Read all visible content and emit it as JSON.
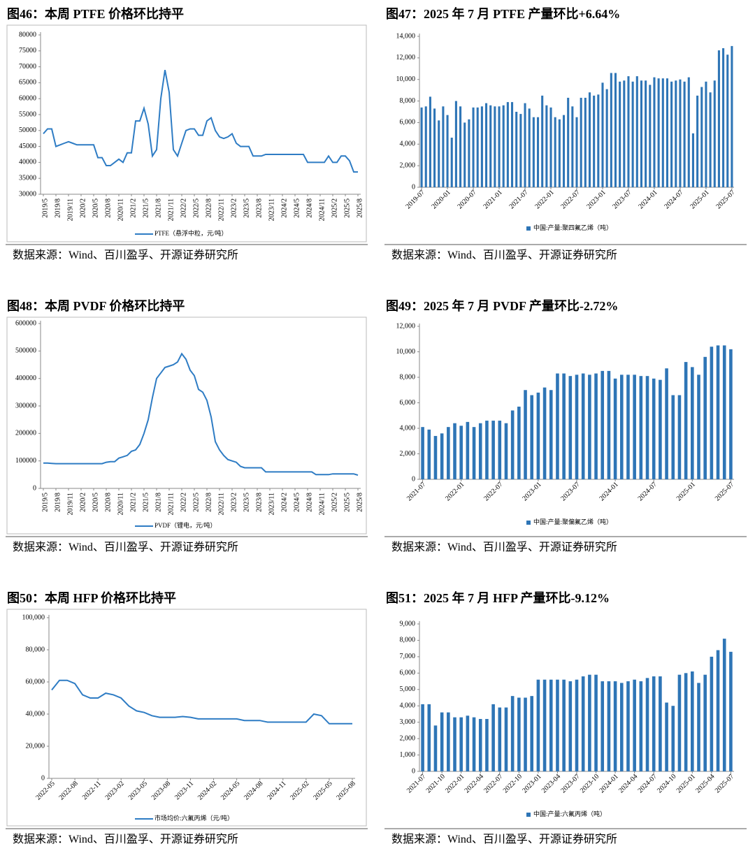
{
  "chart_data": [
    {
      "type": "line",
      "title": "图46：本周 PTFE 价格环比持平",
      "source": "数据来源：Wind、百川盈孚、开源证券研究所",
      "categories": [
        "2019/5",
        null,
        null,
        "2019/8",
        null,
        null,
        "2019/11",
        null,
        null,
        "2020/2",
        null,
        null,
        "2020/5",
        null,
        null,
        "2020/8",
        null,
        null,
        "2020/11",
        null,
        null,
        "2021/2",
        null,
        null,
        "2021/5",
        null,
        null,
        "2021/8",
        null,
        null,
        "2021/11",
        null,
        null,
        "2022/2",
        null,
        null,
        "2022/5",
        null,
        null,
        "2022/8",
        null,
        null,
        "2022/11",
        null,
        null,
        "2023/2",
        null,
        null,
        "2023/5",
        null,
        null,
        "2023/8",
        null,
        null,
        "2023/11",
        null,
        null,
        "2024/2",
        null,
        null,
        "2024/5",
        null,
        null,
        "2024/8",
        null,
        null,
        "2024/11",
        null,
        null,
        "2025/2",
        null,
        null,
        "2025/5",
        null,
        null,
        "2025/8"
      ],
      "series": [
        {
          "name": "PTFE（悬浮中粒，元/吨）",
          "color": "#2e7cc4",
          "values": [
            49000,
            50500,
            50500,
            45000,
            45500,
            46000,
            46500,
            46000,
            45500,
            45500,
            45500,
            45500,
            45500,
            41500,
            41500,
            39000,
            39000,
            40000,
            41000,
            40000,
            43000,
            43000,
            53000,
            53000,
            57000,
            52000,
            42000,
            44000,
            60000,
            69000,
            62000,
            44000,
            42000,
            46000,
            50000,
            50500,
            50500,
            48500,
            48500,
            53000,
            54000,
            50000,
            48000,
            47500,
            48000,
            49000,
            46000,
            45000,
            45000,
            45000,
            42000,
            42000,
            42000,
            42500,
            42500,
            42500,
            42500,
            42500,
            42500,
            42500,
            42500,
            42500,
            42500,
            40000,
            40000,
            40000,
            40000,
            40000,
            42000,
            40000,
            40000,
            42000,
            42000,
            40500,
            37000,
            37000
          ]
        }
      ],
      "ylim": [
        30000,
        80000
      ],
      "yticks": [
        30000,
        35000,
        40000,
        45000,
        50000,
        55000,
        60000,
        65000,
        70000,
        75000,
        80000
      ]
    },
    {
      "type": "bar",
      "title": "图47：2025 年 7 月 PTFE 产量环比+6.64%",
      "source": "数据来源：Wind、百川盈孚、开源证券研究所",
      "categories": [
        "2019-07",
        null,
        null,
        null,
        null,
        null,
        "2020-01",
        null,
        null,
        null,
        null,
        null,
        "2020-07",
        null,
        null,
        null,
        null,
        null,
        "2021-01",
        null,
        null,
        null,
        null,
        null,
        "2021-07",
        null,
        null,
        null,
        null,
        null,
        "2022-01",
        null,
        null,
        null,
        null,
        null,
        "2022-07",
        null,
        null,
        null,
        null,
        null,
        "2023-01",
        null,
        null,
        null,
        null,
        null,
        "2023-07",
        null,
        null,
        null,
        null,
        null,
        "2024-01",
        null,
        null,
        null,
        null,
        null,
        "2024-07",
        null,
        null,
        null,
        null,
        null,
        "2025-01",
        null,
        null,
        null,
        null,
        null,
        "2025-07"
      ],
      "series": [
        {
          "name": "中国:产量:聚四氟乙烯（吨）",
          "color": "#2e75b6",
          "values": [
            7400,
            7500,
            8400,
            7300,
            6200,
            7500,
            6700,
            4600,
            8000,
            7500,
            6000,
            6300,
            7400,
            7400,
            7500,
            7800,
            7600,
            7500,
            7500,
            7600,
            7900,
            7900,
            7000,
            6800,
            7800,
            7300,
            6500,
            6500,
            8500,
            7600,
            7400,
            6500,
            6300,
            6700,
            8300,
            7500,
            6500,
            8300,
            8300,
            8800,
            8500,
            8600,
            9700,
            9100,
            10600,
            10600,
            9800,
            9900,
            10300,
            9800,
            10300,
            9900,
            9900,
            9500,
            10200,
            10100,
            10100,
            10100,
            9800,
            9900,
            10000,
            9800,
            10200,
            5000,
            8500,
            9300,
            9800,
            8800,
            9900,
            12700,
            12900,
            12300,
            13100
          ]
        }
      ],
      "ylim": [
        0,
        14000
      ],
      "yticks": [
        0,
        {
          "value": 2000,
          "label": "2,000"
        },
        {
          "value": 4000,
          "label": "4,000"
        },
        {
          "value": 6000,
          "label": "6,000"
        },
        {
          "value": 8000,
          "label": "8,000"
        },
        {
          "value": 10000,
          "label": "10,000"
        },
        {
          "value": 12000,
          "label": "12,000"
        },
        {
          "value": 14000,
          "label": "14,000"
        }
      ]
    },
    {
      "type": "line",
      "title": "图48：本周 PVDF 价格环比持平",
      "source": "数据来源：Wind、百川盈孚、开源证券研究所",
      "categories": [
        "2019/5",
        null,
        null,
        "2019/8",
        null,
        null,
        "2019/11",
        null,
        null,
        "2020/2",
        null,
        null,
        "2020/5",
        null,
        null,
        "2020/8",
        null,
        null,
        "2020/11",
        null,
        null,
        "2021/2",
        null,
        null,
        "2021/5",
        null,
        null,
        "2021/8",
        null,
        null,
        "2021/11",
        null,
        null,
        "2022/2",
        null,
        null,
        "2022/5",
        null,
        null,
        "2022/8",
        null,
        null,
        "2022/11",
        null,
        null,
        "2023/2",
        null,
        null,
        "2023/5",
        null,
        null,
        "2023/8",
        null,
        null,
        "2023/11",
        null,
        null,
        "2024/2",
        null,
        null,
        "2024/5",
        null,
        null,
        "2024/8",
        null,
        null,
        "2024/11",
        null,
        null,
        "2025/2",
        null,
        null,
        "2025/5",
        null,
        null,
        "2025/8"
      ],
      "series": [
        {
          "name": "PVDF（锂电，元/吨）",
          "color": "#2e7cc4",
          "values": [
            92000,
            92000,
            91000,
            90000,
            90000,
            90000,
            90000,
            90000,
            90000,
            90000,
            90000,
            90000,
            90000,
            90000,
            90000,
            95000,
            97000,
            97000,
            110000,
            115000,
            120000,
            135000,
            140000,
            160000,
            200000,
            250000,
            330000,
            400000,
            420000,
            440000,
            445000,
            450000,
            460000,
            490000,
            470000,
            430000,
            410000,
            360000,
            350000,
            320000,
            260000,
            170000,
            140000,
            120000,
            105000,
            100000,
            95000,
            80000,
            75000,
            75000,
            75000,
            75000,
            75000,
            60000,
            60000,
            60000,
            60000,
            60000,
            60000,
            60000,
            60000,
            60000,
            60000,
            60000,
            60000,
            50000,
            50000,
            50000,
            50000,
            53000,
            53000,
            53000,
            53000,
            53000,
            53000,
            48000
          ]
        }
      ],
      "ylim": [
        0,
        600000
      ],
      "yticks": [
        0,
        100000,
        200000,
        300000,
        400000,
        500000,
        600000
      ]
    },
    {
      "type": "bar",
      "title": "图49：2025 年 7 月 PVDF 产量环比-2.72%",
      "source": "数据来源：Wind、百川盈孚、开源证券研究所",
      "categories": [
        "2021-07",
        null,
        null,
        null,
        null,
        null,
        "2022-01",
        null,
        null,
        null,
        null,
        null,
        "2022-07",
        null,
        null,
        null,
        null,
        null,
        "2023-01",
        null,
        null,
        null,
        null,
        null,
        "2023-07",
        null,
        null,
        null,
        null,
        null,
        "2024-01",
        null,
        null,
        null,
        null,
        null,
        "2024-07",
        null,
        null,
        null,
        null,
        null,
        "2025-01",
        null,
        null,
        null,
        null,
        null,
        "2025-07"
      ],
      "series": [
        {
          "name": "中国:产量:聚偏氟乙烯（吨）",
          "color": "#2e75b6",
          "values": [
            4100,
            3900,
            3400,
            3600,
            4100,
            4400,
            4200,
            4500,
            4100,
            4400,
            4600,
            4600,
            4600,
            4400,
            5400,
            5700,
            7000,
            6600,
            6800,
            7200,
            7000,
            8300,
            8300,
            8100,
            8200,
            8300,
            8200,
            8300,
            8500,
            8500,
            7900,
            8200,
            8200,
            8200,
            8100,
            8100,
            7900,
            7800,
            8700,
            6600,
            6600,
            9200,
            8800,
            8200,
            9600,
            10400,
            10500,
            10500,
            10200
          ]
        }
      ],
      "ylim": [
        0,
        12000
      ],
      "yticks": [
        0,
        {
          "value": 2000,
          "label": "2,000"
        },
        {
          "value": 4000,
          "label": "4,000"
        },
        {
          "value": 6000,
          "label": "6,000"
        },
        {
          "value": 8000,
          "label": "8,000"
        },
        {
          "value": 10000,
          "label": "10,000"
        },
        {
          "value": 12000,
          "label": "12,000"
        }
      ]
    },
    {
      "type": "line",
      "title": "图50：本周 HFP 价格环比持平",
      "source": "数据来源：Wind、百川盈孚、开源证券研究所",
      "categories": [
        "2022-05",
        null,
        null,
        "2022-08",
        null,
        null,
        "2022-11",
        null,
        null,
        "2023-02",
        null,
        null,
        "2023-05",
        null,
        null,
        "2023-08",
        null,
        null,
        "2023-11",
        null,
        null,
        "2024-02",
        null,
        null,
        "2024-05",
        null,
        null,
        "2024-08",
        null,
        null,
        "2024-11",
        null,
        null,
        "2025-02",
        null,
        null,
        "2025-05",
        null,
        null,
        "2025-08"
      ],
      "series": [
        {
          "name": "市场均价:六氟丙烯（元/吨）",
          "color": "#2e7cc4",
          "values": [
            55000,
            61000,
            61000,
            59000,
            52000,
            50000,
            50000,
            53000,
            52000,
            50000,
            45000,
            42000,
            41000,
            39000,
            38000,
            38000,
            38000,
            38500,
            38000,
            37000,
            37000,
            37000,
            37000,
            37000,
            37000,
            36000,
            36000,
            36000,
            35000,
            35000,
            35000,
            35000,
            35000,
            35000,
            40000,
            39000,
            34000,
            34000,
            34000,
            34000
          ]
        }
      ],
      "ylim": [
        0,
        100000
      ],
      "yticks": [
        0,
        {
          "value": 20000,
          "label": "20,000"
        },
        {
          "value": 40000,
          "label": "40,000"
        },
        {
          "value": 60000,
          "label": "60,000"
        },
        {
          "value": 80000,
          "label": "80,000"
        },
        {
          "value": 100000,
          "label": "100,000"
        }
      ]
    },
    {
      "type": "bar",
      "title": "图51：2025 年 7 月 HFP 产量环比-9.12%",
      "source": "数据来源：Wind、百川盈孚、开源证券研究所",
      "categories": [
        "2021-07",
        null,
        null,
        "2021-10",
        null,
        null,
        "2022-01",
        null,
        null,
        "2022-04",
        null,
        null,
        "2022-07",
        null,
        null,
        "2022-10",
        null,
        null,
        "2023-01",
        null,
        null,
        "2023-04",
        null,
        null,
        "2023-07",
        null,
        null,
        "2023-10",
        null,
        null,
        "2024-01",
        null,
        null,
        "2024-04",
        null,
        null,
        "2024-07",
        null,
        null,
        "2024-10",
        null,
        null,
        "2025-01",
        null,
        null,
        "2025-04",
        null,
        null,
        "2025-07"
      ],
      "series": [
        {
          "name": "中国:产量:六氟丙烯（吨）",
          "color": "#2e75b6",
          "values": [
            4100,
            4100,
            2800,
            3600,
            3600,
            3300,
            3300,
            3400,
            3300,
            3200,
            3200,
            4100,
            3900,
            3900,
            4600,
            4500,
            4500,
            4600,
            5600,
            5600,
            5600,
            5600,
            5600,
            5500,
            5600,
            5800,
            5900,
            5900,
            5500,
            5500,
            5500,
            5400,
            5500,
            5600,
            5500,
            5700,
            5800,
            5800,
            4200,
            4000,
            5900,
            6000,
            6100,
            5400,
            5900,
            7000,
            7400,
            8100,
            7300
          ]
        }
      ],
      "ylim": [
        0,
        9000
      ],
      "yticks": [
        0,
        {
          "value": 1000,
          "label": "1,000"
        },
        {
          "value": 2000,
          "label": "2,000"
        },
        {
          "value": 3000,
          "label": "3,000"
        },
        {
          "value": 4000,
          "label": "4,000"
        },
        {
          "value": 5000,
          "label": "5,000"
        },
        {
          "value": 6000,
          "label": "6,000"
        },
        {
          "value": 7000,
          "label": "7,000"
        },
        {
          "value": 8000,
          "label": "8,000"
        },
        {
          "value": 9000,
          "label": "9,000"
        }
      ]
    }
  ]
}
